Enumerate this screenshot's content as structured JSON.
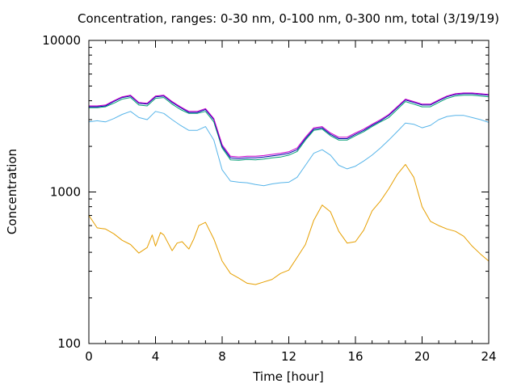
{
  "chart_data": {
    "type": "line",
    "title": "Concentration, ranges: 0-30 nm, 0-100 nm, 0-300 nm, total (3/19/19)",
    "xlabel": "Time [hour]",
    "ylabel": "Concentration",
    "xlim": [
      0,
      24
    ],
    "ylim": [
      100,
      10000
    ],
    "yscale": "log",
    "grid": false,
    "x_ticks": [
      "0",
      "4",
      "8",
      "12",
      "16",
      "20",
      "24"
    ],
    "y_ticks": [
      "100",
      "1000",
      "10000"
    ],
    "series": [
      {
        "color": "#e69f00",
        "x": [
          0,
          0.5,
          1,
          1.5,
          2,
          2.5,
          3,
          3.5,
          3.8,
          4,
          4.3,
          4.5,
          5,
          5.3,
          5.6,
          6,
          6.3,
          6.6,
          7,
          7.5,
          8,
          8.5,
          9,
          9.5,
          10,
          10.5,
          11,
          11.5,
          12,
          12.5,
          13,
          13.5,
          14,
          14.5,
          15,
          15.5,
          16,
          16.5,
          17,
          17.5,
          18,
          18.5,
          19,
          19.5,
          20,
          20.5,
          21,
          21.5,
          22,
          22.5,
          23,
          23.5,
          24
        ],
        "values": [
          700,
          580,
          570,
          530,
          480,
          450,
          395,
          430,
          520,
          440,
          540,
          520,
          410,
          460,
          470,
          420,
          490,
          600,
          630,
          490,
          350,
          290,
          270,
          250,
          245,
          255,
          265,
          290,
          305,
          370,
          450,
          650,
          820,
          740,
          550,
          460,
          470,
          560,
          750,
          870,
          1050,
          1300,
          1520,
          1250,
          800,
          640,
          600,
          570,
          550,
          510,
          440,
          390,
          350
        ]
      },
      {
        "color": "#56b4e9",
        "x": [
          0,
          0.5,
          1,
          1.5,
          2,
          2.5,
          3,
          3.5,
          4,
          4.5,
          5,
          5.5,
          6,
          6.5,
          7,
          7.5,
          8,
          8.5,
          9,
          9.5,
          10,
          10.5,
          11,
          11.5,
          12,
          12.5,
          13,
          13.5,
          14,
          14.5,
          15,
          15.5,
          16,
          16.5,
          17,
          17.5,
          18,
          18.5,
          19,
          19.5,
          20,
          20.5,
          21,
          21.5,
          22,
          22.5,
          23,
          23.5,
          24
        ],
        "values": [
          2900,
          2950,
          2900,
          3050,
          3250,
          3400,
          3100,
          3000,
          3400,
          3300,
          3000,
          2750,
          2550,
          2550,
          2700,
          2200,
          1400,
          1180,
          1160,
          1150,
          1120,
          1100,
          1130,
          1150,
          1160,
          1250,
          1500,
          1800,
          1900,
          1750,
          1500,
          1420,
          1480,
          1600,
          1750,
          1950,
          2200,
          2500,
          2850,
          2800,
          2650,
          2750,
          3000,
          3150,
          3200,
          3200,
          3100,
          3000,
          2880
        ]
      },
      {
        "color": "#009e73",
        "x": [
          0,
          0.5,
          1,
          1.5,
          2,
          2.5,
          3,
          3.5,
          4,
          4.5,
          5,
          5.5,
          6,
          6.5,
          7,
          7.5,
          8,
          8.5,
          9,
          9.5,
          10,
          10.5,
          11,
          11.5,
          12,
          12.5,
          13,
          13.5,
          14,
          14.5,
          15,
          15.5,
          16,
          16.5,
          17,
          17.5,
          18,
          18.5,
          19,
          19.5,
          20,
          20.5,
          21,
          21.5,
          22,
          22.5,
          23,
          23.5,
          24
        ],
        "values": [
          3600,
          3600,
          3650,
          3850,
          4100,
          4200,
          3750,
          3700,
          4150,
          4200,
          3800,
          3500,
          3300,
          3300,
          3400,
          2900,
          1950,
          1630,
          1620,
          1640,
          1630,
          1650,
          1680,
          1700,
          1750,
          1850,
          2200,
          2550,
          2600,
          2350,
          2200,
          2200,
          2350,
          2500,
          2700,
          2900,
          3100,
          3500,
          3950,
          3800,
          3650,
          3650,
          3900,
          4150,
          4300,
          4350,
          4350,
          4300,
          4250
        ]
      },
      {
        "color": "#0000aa",
        "x": [
          0,
          0.5,
          1,
          1.5,
          2,
          2.5,
          3,
          3.5,
          4,
          4.5,
          5,
          5.5,
          6,
          6.5,
          7,
          7.5,
          8,
          8.5,
          9,
          9.5,
          10,
          10.5,
          11,
          11.5,
          12,
          12.5,
          13,
          13.5,
          14,
          14.5,
          15,
          15.5,
          16,
          16.5,
          17,
          17.5,
          18,
          18.5,
          19,
          19.5,
          20,
          20.5,
          21,
          21.5,
          22,
          22.5,
          23,
          23.5,
          24
        ],
        "values": [
          3650,
          3650,
          3700,
          3950,
          4200,
          4300,
          3850,
          3800,
          4250,
          4300,
          3900,
          3600,
          3350,
          3350,
          3500,
          3000,
          2000,
          1680,
          1660,
          1680,
          1680,
          1700,
          1730,
          1760,
          1800,
          1900,
          2250,
          2600,
          2650,
          2400,
          2250,
          2250,
          2400,
          2550,
          2750,
          2950,
          3200,
          3600,
          4050,
          3900,
          3750,
          3750,
          4000,
          4250,
          4400,
          4450,
          4450,
          4400,
          4350
        ]
      },
      {
        "color": "#cc00cc",
        "x": [
          0,
          0.5,
          1,
          1.5,
          2,
          2.5,
          3,
          3.5,
          4,
          4.5,
          5,
          5.5,
          6,
          6.5,
          7,
          7.5,
          8,
          8.5,
          9,
          9.5,
          10,
          10.5,
          11,
          11.5,
          12,
          12.5,
          13,
          13.5,
          14,
          14.5,
          15,
          15.5,
          16,
          16.5,
          17,
          17.5,
          18,
          18.5,
          19,
          19.5,
          20,
          20.5,
          21,
          21.5,
          22,
          22.5,
          23,
          23.5,
          24
        ],
        "values": [
          3700,
          3700,
          3750,
          4000,
          4250,
          4350,
          3900,
          3850,
          4300,
          4350,
          3950,
          3650,
          3400,
          3400,
          3550,
          3050,
          2050,
          1720,
          1700,
          1720,
          1720,
          1740,
          1770,
          1800,
          1840,
          1950,
          2300,
          2650,
          2700,
          2450,
          2300,
          2300,
          2450,
          2600,
          2800,
          3000,
          3250,
          3650,
          4100,
          3950,
          3800,
          3800,
          4050,
          4300,
          4450,
          4500,
          4500,
          4450,
          4400
        ]
      }
    ]
  }
}
